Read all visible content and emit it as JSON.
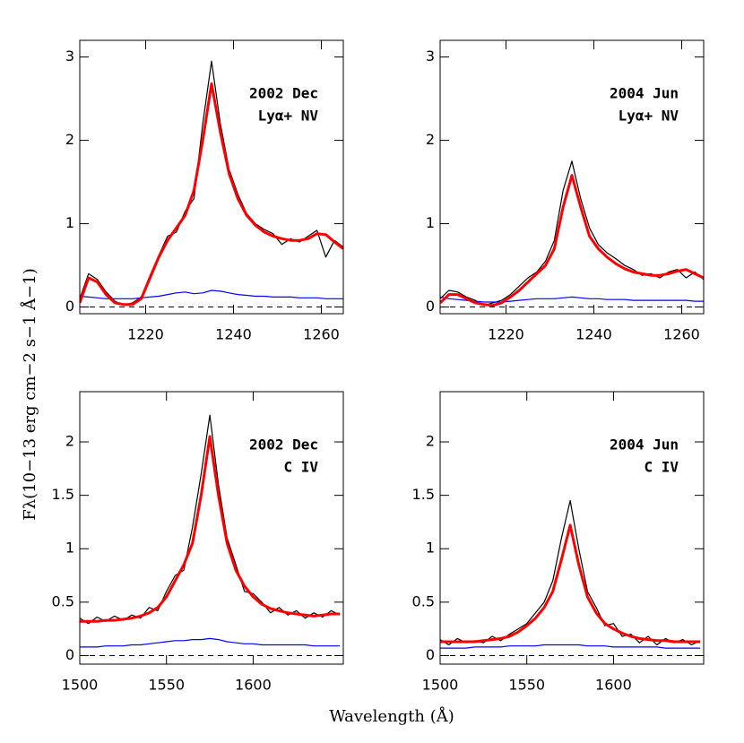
{
  "ylabel": "Fλ(10−13 erg cm−2 s−1 Å−1)",
  "xlabel": "Wavelength (Å)",
  "chart_data": [
    {
      "type": "line",
      "annotations": [
        "2002 Dec",
        "Lyα+ NV"
      ],
      "xlim": [
        1205,
        1265
      ],
      "xticks": [
        1220,
        1240,
        1260
      ],
      "ylim": [
        -0.08,
        3.2
      ],
      "yticks": [
        0,
        1,
        2,
        3
      ],
      "zero_line": true,
      "x": [
        1205,
        1207,
        1209,
        1211,
        1213,
        1215,
        1217,
        1219,
        1221,
        1223,
        1225,
        1227,
        1229,
        1231,
        1233,
        1235,
        1237,
        1239,
        1241,
        1243,
        1245,
        1247,
        1249,
        1251,
        1253,
        1255,
        1257,
        1259,
        1261,
        1263,
        1265
      ],
      "series": [
        {
          "color": "#000000",
          "values": [
            0.1,
            0.4,
            0.33,
            0.18,
            0.07,
            0.02,
            0.05,
            0.12,
            0.38,
            0.62,
            0.85,
            0.9,
            1.15,
            1.3,
            2.2,
            2.95,
            2.2,
            1.65,
            1.35,
            1.12,
            1.0,
            0.93,
            0.88,
            0.75,
            0.82,
            0.78,
            0.85,
            0.92,
            0.6,
            0.8,
            0.72
          ]
        },
        {
          "color": "#0000ff",
          "values": [
            0.13,
            0.12,
            0.11,
            0.1,
            0.1,
            0.1,
            0.1,
            0.11,
            0.12,
            0.13,
            0.15,
            0.17,
            0.18,
            0.16,
            0.17,
            0.2,
            0.19,
            0.17,
            0.15,
            0.14,
            0.13,
            0.13,
            0.12,
            0.12,
            0.12,
            0.11,
            0.11,
            0.11,
            0.1,
            0.1,
            0.1
          ]
        },
        {
          "color": "#ff0000",
          "values": [
            0.05,
            0.35,
            0.3,
            0.15,
            0.05,
            0.03,
            0.03,
            0.1,
            0.35,
            0.6,
            0.8,
            0.95,
            1.1,
            1.4,
            2.0,
            2.68,
            2.1,
            1.6,
            1.3,
            1.1,
            0.98,
            0.9,
            0.85,
            0.82,
            0.8,
            0.8,
            0.82,
            0.88,
            0.87,
            0.78,
            0.7
          ]
        }
      ]
    },
    {
      "type": "line",
      "annotations": [
        "2004 Jun",
        "Lyα+ NV"
      ],
      "xlim": [
        1205,
        1265
      ],
      "xticks": [
        1220,
        1240,
        1260
      ],
      "ylim": [
        -0.08,
        3.2
      ],
      "yticks": [
        0,
        1,
        2,
        3
      ],
      "zero_line": true,
      "x": [
        1205,
        1207,
        1209,
        1211,
        1213,
        1215,
        1217,
        1219,
        1221,
        1223,
        1225,
        1227,
        1229,
        1231,
        1233,
        1235,
        1237,
        1239,
        1241,
        1243,
        1245,
        1247,
        1249,
        1251,
        1253,
        1255,
        1257,
        1259,
        1261,
        1263,
        1265
      ],
      "series": [
        {
          "color": "#000000",
          "values": [
            0.1,
            0.2,
            0.18,
            0.12,
            0.08,
            0.02,
            0.05,
            0.08,
            0.15,
            0.25,
            0.35,
            0.42,
            0.55,
            0.8,
            1.4,
            1.75,
            1.3,
            0.95,
            0.75,
            0.65,
            0.58,
            0.5,
            0.45,
            0.38,
            0.4,
            0.35,
            0.42,
            0.45,
            0.35,
            0.42,
            0.33
          ]
        },
        {
          "color": "#0000ff",
          "values": [
            0.12,
            0.1,
            0.09,
            0.08,
            0.07,
            0.06,
            0.06,
            0.06,
            0.07,
            0.08,
            0.09,
            0.1,
            0.1,
            0.1,
            0.11,
            0.12,
            0.11,
            0.1,
            0.1,
            0.09,
            0.09,
            0.09,
            0.08,
            0.08,
            0.08,
            0.08,
            0.08,
            0.08,
            0.08,
            0.07,
            0.07
          ]
        },
        {
          "color": "#ff0000",
          "values": [
            0.05,
            0.15,
            0.15,
            0.1,
            0.05,
            0.03,
            0.02,
            0.05,
            0.12,
            0.2,
            0.3,
            0.4,
            0.5,
            0.7,
            1.2,
            1.58,
            1.2,
            0.85,
            0.7,
            0.6,
            0.52,
            0.46,
            0.42,
            0.4,
            0.38,
            0.38,
            0.4,
            0.43,
            0.45,
            0.4,
            0.35
          ]
        }
      ]
    },
    {
      "type": "line",
      "annotations": [
        "2002 Dec",
        "C IV"
      ],
      "xlim": [
        1500,
        1652
      ],
      "xticks": [
        1500,
        1550,
        1600
      ],
      "ylim": [
        -0.08,
        2.47
      ],
      "yticks": [
        0,
        0.5,
        1,
        1.5,
        2
      ],
      "zero_line": true,
      "x": [
        1500,
        1505,
        1510,
        1515,
        1520,
        1525,
        1530,
        1535,
        1540,
        1545,
        1550,
        1555,
        1560,
        1565,
        1570,
        1575,
        1580,
        1585,
        1590,
        1595,
        1600,
        1605,
        1610,
        1615,
        1620,
        1625,
        1630,
        1635,
        1640,
        1645,
        1650
      ],
      "series": [
        {
          "color": "#000000",
          "values": [
            0.35,
            0.3,
            0.36,
            0.32,
            0.37,
            0.33,
            0.38,
            0.35,
            0.45,
            0.42,
            0.6,
            0.75,
            0.8,
            1.2,
            1.7,
            2.25,
            1.6,
            1.1,
            0.85,
            0.6,
            0.58,
            0.5,
            0.4,
            0.45,
            0.38,
            0.42,
            0.35,
            0.4,
            0.36,
            0.42,
            0.38
          ]
        },
        {
          "color": "#0000ff",
          "values": [
            0.08,
            0.08,
            0.08,
            0.09,
            0.09,
            0.09,
            0.1,
            0.1,
            0.11,
            0.12,
            0.13,
            0.14,
            0.14,
            0.15,
            0.15,
            0.16,
            0.15,
            0.13,
            0.12,
            0.11,
            0.11,
            0.1,
            0.1,
            0.1,
            0.1,
            0.1,
            0.1,
            0.09,
            0.09,
            0.09,
            0.09
          ]
        },
        {
          "color": "#ff0000",
          "values": [
            0.32,
            0.32,
            0.32,
            0.33,
            0.33,
            0.34,
            0.35,
            0.37,
            0.4,
            0.45,
            0.55,
            0.7,
            0.85,
            1.05,
            1.5,
            2.05,
            1.5,
            1.05,
            0.8,
            0.65,
            0.55,
            0.48,
            0.44,
            0.42,
            0.4,
            0.39,
            0.38,
            0.37,
            0.38,
            0.39,
            0.39
          ]
        }
      ]
    },
    {
      "type": "line",
      "annotations": [
        "2004 Jun",
        "C IV"
      ],
      "xlim": [
        1500,
        1652
      ],
      "xticks": [
        1500,
        1550,
        1600
      ],
      "ylim": [
        -0.08,
        2.47
      ],
      "yticks": [
        0,
        0.5,
        1,
        1.5,
        2
      ],
      "zero_line": true,
      "x": [
        1500,
        1505,
        1510,
        1515,
        1520,
        1525,
        1530,
        1535,
        1540,
        1545,
        1550,
        1555,
        1560,
        1565,
        1570,
        1575,
        1580,
        1585,
        1590,
        1595,
        1600,
        1605,
        1610,
        1615,
        1620,
        1625,
        1630,
        1635,
        1640,
        1645,
        1650
      ],
      "series": [
        {
          "color": "#000000",
          "values": [
            0.15,
            0.1,
            0.16,
            0.12,
            0.14,
            0.12,
            0.18,
            0.14,
            0.2,
            0.25,
            0.3,
            0.4,
            0.5,
            0.7,
            1.1,
            1.45,
            1.0,
            0.6,
            0.45,
            0.28,
            0.3,
            0.18,
            0.2,
            0.12,
            0.18,
            0.1,
            0.16,
            0.12,
            0.15,
            0.1,
            0.14
          ]
        },
        {
          "color": "#0000ff",
          "values": [
            0.07,
            0.07,
            0.07,
            0.07,
            0.08,
            0.08,
            0.08,
            0.08,
            0.09,
            0.09,
            0.09,
            0.09,
            0.1,
            0.1,
            0.1,
            0.1,
            0.1,
            0.09,
            0.09,
            0.09,
            0.08,
            0.08,
            0.08,
            0.08,
            0.08,
            0.08,
            0.07,
            0.07,
            0.07,
            0.07,
            0.07
          ]
        },
        {
          "color": "#ff0000",
          "values": [
            0.13,
            0.13,
            0.13,
            0.13,
            0.13,
            0.14,
            0.15,
            0.16,
            0.18,
            0.22,
            0.28,
            0.35,
            0.45,
            0.6,
            0.9,
            1.22,
            0.85,
            0.55,
            0.4,
            0.3,
            0.25,
            0.21,
            0.18,
            0.16,
            0.15,
            0.14,
            0.14,
            0.13,
            0.13,
            0.13,
            0.13
          ]
        }
      ]
    }
  ]
}
